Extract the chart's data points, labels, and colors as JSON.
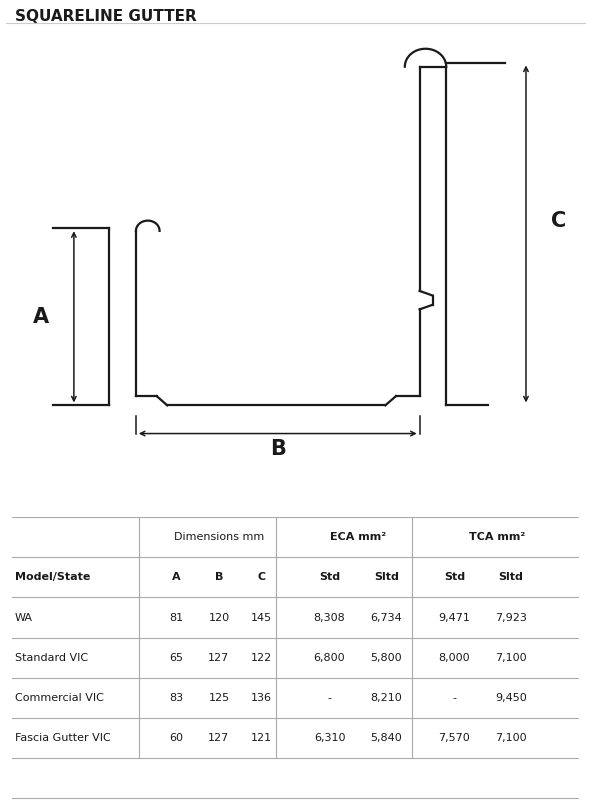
{
  "title": "SQUARELINE GUTTER",
  "bg_color": "#ffffff",
  "line_color": "#1a1a1a",
  "sep_color": "#aaaaaa",
  "table_rows": [
    [
      "WA",
      "81",
      "120",
      "145",
      "8,308",
      "6,734",
      "9,471",
      "7,923"
    ],
    [
      "Standard VIC",
      "65",
      "127",
      "122",
      "6,800",
      "5,800",
      "8,000",
      "7,100"
    ],
    [
      "Commercial VIC",
      "83",
      "125",
      "136",
      "-",
      "8,210",
      "-",
      "9,450"
    ],
    [
      "Fascia Gutter VIC",
      "60",
      "127",
      "121",
      "6,310",
      "5,840",
      "7,570",
      "7,100"
    ]
  ],
  "dim_label_A": "A",
  "dim_label_B": "B",
  "dim_label_C": "C",
  "header1": [
    "Dimensions mm",
    "ECA mm²",
    "TCA mm²"
  ],
  "header2": [
    "Model/State",
    "A",
    "B",
    "C",
    "Std",
    "Sltd",
    "Std",
    "Sltd"
  ]
}
